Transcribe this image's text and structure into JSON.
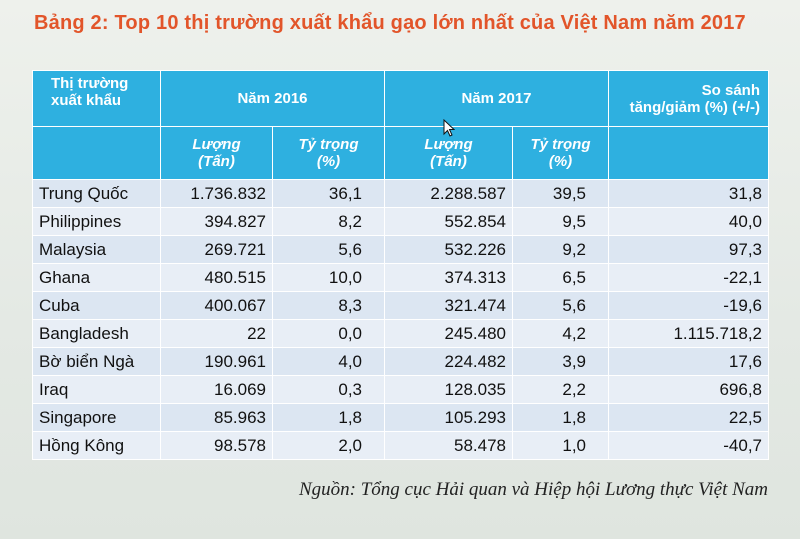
{
  "title": "Bảng 2: Top 10 thị trường xuất khẩu gạo lớn nhất của Việt Nam năm 2017",
  "header": {
    "market_line1": "Thị trường",
    "market_line2": "xuất khẩu",
    "year2016": "Năm 2016",
    "year2017": "Năm 2017",
    "compare_line1": "So sánh",
    "compare_line2": "tăng/giảm (%) (+/-)",
    "qty_line1": "Lượng",
    "qty_line2": "(Tấn)",
    "share_line1": "Tỷ trọng",
    "share_line2": "(%)"
  },
  "rows": [
    {
      "market": "Trung Quốc",
      "q2016": "1.736.832",
      "s2016": "36,1",
      "q2017": "2.288.587",
      "s2017": "39,5",
      "change": "31,8"
    },
    {
      "market": "Philippines",
      "q2016": "394.827",
      "s2016": "8,2",
      "q2017": "552.854",
      "s2017": "9,5",
      "change": "40,0"
    },
    {
      "market": "Malaysia",
      "q2016": "269.721",
      "s2016": "5,6",
      "q2017": "532.226",
      "s2017": "9,2",
      "change": "97,3"
    },
    {
      "market": "Ghana",
      "q2016": "480.515",
      "s2016": "10,0",
      "q2017": "374.313",
      "s2017": "6,5",
      "change": "-22,1"
    },
    {
      "market": "Cuba",
      "q2016": "400.067",
      "s2016": "8,3",
      "q2017": "321.474",
      "s2017": "5,6",
      "change": "-19,6"
    },
    {
      "market": "Bangladesh",
      "q2016": "22",
      "s2016": "0,0",
      "q2017": "245.480",
      "s2017": "4,2",
      "change": "1.115.718,2"
    },
    {
      "market": "Bờ biển Ngà",
      "q2016": "190.961",
      "s2016": "4,0",
      "q2017": "224.482",
      "s2017": "3,9",
      "change": "17,6"
    },
    {
      "market": "Iraq",
      "q2016": "16.069",
      "s2016": "0,3",
      "q2017": "128.035",
      "s2017": "2,2",
      "change": "696,8"
    },
    {
      "market": "Singapore",
      "q2016": "85.963",
      "s2016": "1,8",
      "q2017": "105.293",
      "s2017": "1,8",
      "change": "22,5"
    },
    {
      "market": "Hồng Kông",
      "q2016": "98.578",
      "s2016": "2,0",
      "q2017": "58.478",
      "s2017": "1,0",
      "change": "-40,7"
    }
  ],
  "source": "Nguồn: Tổng cục Hải quan và Hiệp hội Lương thực Việt Nam",
  "colors": {
    "title": "#e2552a",
    "header_bg": "#2eb0e0",
    "row_bg": "#dce6f2"
  },
  "icons": {
    "cursor": "mouse-pointer-icon"
  }
}
